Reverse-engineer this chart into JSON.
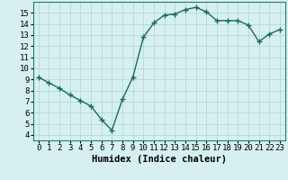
{
  "title": "",
  "xlabel": "Humidex (Indice chaleur)",
  "x": [
    0,
    1,
    2,
    3,
    4,
    5,
    6,
    7,
    8,
    9,
    10,
    11,
    12,
    13,
    14,
    15,
    16,
    17,
    18,
    19,
    20,
    21,
    22,
    23
  ],
  "y": [
    9.2,
    8.7,
    8.2,
    7.6,
    7.1,
    6.6,
    5.4,
    4.4,
    7.2,
    9.2,
    12.8,
    14.1,
    14.8,
    14.9,
    15.3,
    15.5,
    15.1,
    14.3,
    14.3,
    14.3,
    13.9,
    12.4,
    13.1,
    13.5
  ],
  "line_color": "#1a6b5a",
  "marker": "+",
  "marker_size": 4,
  "bg_color": "#d6f0f0",
  "grid_color": "#b8d8d8",
  "xlim": [
    -0.5,
    23.5
  ],
  "ylim": [
    3.5,
    16.0
  ],
  "yticks": [
    4,
    5,
    6,
    7,
    8,
    9,
    10,
    11,
    12,
    13,
    14,
    15
  ],
  "xticks": [
    0,
    1,
    2,
    3,
    4,
    5,
    6,
    7,
    8,
    9,
    10,
    11,
    12,
    13,
    14,
    15,
    16,
    17,
    18,
    19,
    20,
    21,
    22,
    23
  ],
  "tick_fontsize": 6.5,
  "xlabel_fontsize": 7.5,
  "linewidth": 1.0
}
